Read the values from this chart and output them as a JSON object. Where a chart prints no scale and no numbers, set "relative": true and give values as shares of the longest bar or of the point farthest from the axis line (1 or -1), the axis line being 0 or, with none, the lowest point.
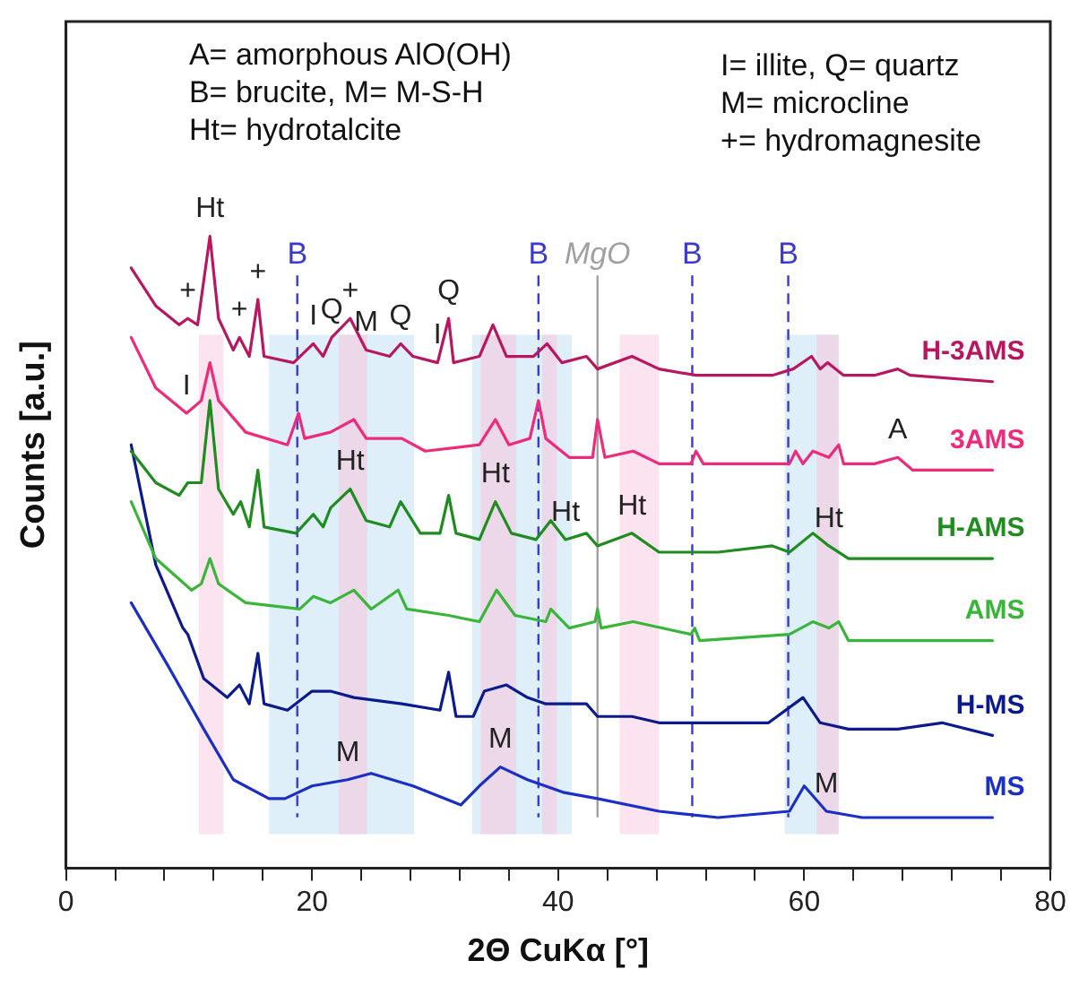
{
  "chart_data": {
    "type": "line",
    "xlabel": "2Θ CuKα [°]",
    "ylabel": "Counts [a.u.]",
    "relative": true,
    "xlim": [
      0,
      80
    ],
    "xticks": [
      0,
      {
        "value": 4,
        "label": null
      },
      {
        "value": 8,
        "label": null
      },
      {
        "value": 12,
        "label": null
      },
      {
        "value": 16,
        "label": null
      },
      20,
      {
        "value": 24,
        "label": null
      },
      {
        "value": 28,
        "label": null
      },
      {
        "value": 32,
        "label": null
      },
      {
        "value": 36,
        "label": null
      },
      40,
      {
        "value": 44,
        "label": null
      },
      {
        "value": 48,
        "label": null
      },
      {
        "value": 52,
        "label": null
      },
      {
        "value": 56,
        "label": null
      },
      60,
      {
        "value": 64,
        "label": null
      },
      {
        "value": 68,
        "label": null
      },
      {
        "value": 72,
        "label": null
      },
      {
        "value": 76,
        "label": null
      },
      80
    ],
    "legend": false,
    "grid": false,
    "marker": "none",
    "line_style": "solid",
    "series": [
      {
        "name": "H-3AMS",
        "color": "#b8175f",
        "x": [
          5.3,
          7.3,
          9.2,
          9.9,
          10.7,
          11.7,
          12.4,
          13.6,
          14.1,
          14.9,
          15.6,
          16.1,
          18.5,
          20.1,
          20.9,
          21.6,
          23.1,
          24.4,
          26.3,
          27.2,
          28.2,
          30.2,
          31.1,
          31.5,
          33.6,
          34.7,
          35.8,
          38.0,
          39.1,
          40.3,
          42.3,
          43.2,
          46.0,
          48.2,
          51.2,
          54.5,
          57.4,
          59.1,
          60.6,
          61.3,
          61.9,
          63.2,
          65.7,
          67.6,
          68.6,
          75.3
        ],
        "values": [
          0.95,
          0.89,
          0.86,
          0.87,
          0.86,
          1.0,
          0.87,
          0.82,
          0.84,
          0.81,
          0.9,
          0.81,
          0.8,
          0.83,
          0.81,
          0.84,
          0.87,
          0.82,
          0.81,
          0.83,
          0.81,
          0.8,
          0.87,
          0.8,
          0.81,
          0.86,
          0.81,
          0.81,
          0.83,
          0.8,
          0.81,
          0.79,
          0.81,
          0.79,
          0.78,
          0.78,
          0.78,
          0.79,
          0.81,
          0.79,
          0.8,
          0.78,
          0.78,
          0.79,
          0.78,
          0.77
        ]
      },
      {
        "name": "3AMS",
        "color": "#ee2a7b",
        "x": [
          5.3,
          7.3,
          9.8,
          11.0,
          11.7,
          12.4,
          14.6,
          18.0,
          18.9,
          19.4,
          21.5,
          23.4,
          24.4,
          27.3,
          29.2,
          33.6,
          34.9,
          36.0,
          37.7,
          38.4,
          39.0,
          40.9,
          42.8,
          43.2,
          43.8,
          46.1,
          48.2,
          50.8,
          51.2,
          51.8,
          58.8,
          59.3,
          59.9,
          60.7,
          62.0,
          62.8,
          63.2,
          65.7,
          67.6,
          68.8,
          75.3
        ],
        "values": [
          0.84,
          0.76,
          0.72,
          0.74,
          0.8,
          0.74,
          0.69,
          0.67,
          0.72,
          0.68,
          0.69,
          0.71,
          0.68,
          0.68,
          0.66,
          0.67,
          0.71,
          0.67,
          0.68,
          0.74,
          0.68,
          0.65,
          0.65,
          0.71,
          0.65,
          0.66,
          0.64,
          0.64,
          0.66,
          0.64,
          0.64,
          0.66,
          0.64,
          0.66,
          0.65,
          0.67,
          0.64,
          0.64,
          0.65,
          0.63,
          0.63
        ]
      },
      {
        "name": "H-AMS",
        "color": "#1e8c1e",
        "x": [
          5.3,
          7.3,
          9.2,
          9.9,
          11.0,
          11.7,
          12.4,
          13.6,
          14.2,
          14.9,
          15.6,
          16.1,
          18.7,
          20.1,
          20.9,
          21.5,
          23.1,
          24.4,
          26.3,
          27.2,
          28.8,
          30.4,
          31.1,
          31.7,
          33.6,
          34.9,
          36.2,
          38.2,
          39.4,
          40.6,
          42.3,
          43.2,
          46.0,
          48.2,
          53.0,
          57.4,
          58.8,
          60.7,
          62.0,
          63.6,
          67.6,
          75.3
        ],
        "values": [
          0.66,
          0.61,
          0.59,
          0.61,
          0.61,
          0.74,
          0.6,
          0.56,
          0.58,
          0.54,
          0.63,
          0.54,
          0.53,
          0.56,
          0.54,
          0.57,
          0.6,
          0.55,
          0.54,
          0.58,
          0.53,
          0.53,
          0.59,
          0.53,
          0.52,
          0.58,
          0.53,
          0.52,
          0.55,
          0.52,
          0.53,
          0.51,
          0.53,
          0.5,
          0.5,
          0.51,
          0.5,
          0.53,
          0.51,
          0.49,
          0.49,
          0.49
        ]
      },
      {
        "name": "AMS",
        "color": "#39b539",
        "x": [
          5.3,
          7.3,
          10.2,
          11.0,
          11.7,
          12.4,
          14.6,
          19.0,
          20.1,
          21.5,
          23.4,
          24.8,
          27.0,
          27.7,
          31.1,
          33.6,
          35.0,
          36.5,
          39.0,
          39.4,
          40.9,
          43.0,
          43.2,
          43.5,
          46.1,
          50.8,
          51.1,
          51.5,
          58.8,
          60.7,
          62.0,
          62.8,
          63.6,
          75.3
        ],
        "values": [
          0.58,
          0.49,
          0.44,
          0.45,
          0.49,
          0.45,
          0.42,
          0.41,
          0.43,
          0.42,
          0.44,
          0.41,
          0.44,
          0.41,
          0.4,
          0.39,
          0.44,
          0.4,
          0.39,
          0.41,
          0.38,
          0.39,
          0.41,
          0.38,
          0.39,
          0.37,
          0.38,
          0.36,
          0.37,
          0.39,
          0.38,
          0.39,
          0.36,
          0.36
        ]
      },
      {
        "name": "H-MS",
        "color": "#0b1a8c",
        "x": [
          5.3,
          7.3,
          9.5,
          9.9,
          11.2,
          13.1,
          14.1,
          14.9,
          15.6,
          16.1,
          18.0,
          20.0,
          21.5,
          23.4,
          27.3,
          30.4,
          31.1,
          31.7,
          33.1,
          34.0,
          35.8,
          37.5,
          39.0,
          41.3,
          42.3,
          43.2,
          46.0,
          48.2,
          53.0,
          57.1,
          59.9,
          61.3,
          63.6,
          67.6,
          71.2,
          75.3
        ],
        "values": [
          0.67,
          0.48,
          0.38,
          0.37,
          0.3,
          0.27,
          0.29,
          0.26,
          0.34,
          0.26,
          0.25,
          0.28,
          0.28,
          0.27,
          0.26,
          0.25,
          0.31,
          0.24,
          0.24,
          0.28,
          0.29,
          0.27,
          0.26,
          0.26,
          0.26,
          0.24,
          0.24,
          0.23,
          0.23,
          0.23,
          0.27,
          0.23,
          0.22,
          0.22,
          0.23,
          0.21
        ]
      },
      {
        "name": "MS",
        "color": "#1c2fc4",
        "x": [
          5.3,
          8.3,
          11.2,
          13.6,
          16.5,
          17.8,
          20.0,
          22.9,
          24.8,
          28.2,
          32.1,
          33.6,
          35.3,
          37.5,
          40.4,
          43.2,
          48.2,
          53.0,
          58.8,
          60.0,
          61.8,
          64.7,
          72.0,
          75.3
        ],
        "values": [
          0.42,
          0.32,
          0.22,
          0.14,
          0.11,
          0.11,
          0.13,
          0.14,
          0.15,
          0.13,
          0.1,
          0.13,
          0.16,
          0.14,
          0.12,
          0.11,
          0.09,
          0.08,
          0.09,
          0.13,
          0.09,
          0.08,
          0.08,
          0.08
        ]
      }
    ],
    "bands": [
      {
        "axis": "x",
        "from": 16.5,
        "to": 28.3,
        "color": "#d4eaf8"
      },
      {
        "axis": "x",
        "from": 33.0,
        "to": 41.1,
        "color": "#d4eaf8"
      },
      {
        "axis": "x",
        "from": 58.4,
        "to": 62.8,
        "color": "#d4eaf8"
      },
      {
        "axis": "x",
        "from": 10.8,
        "to": 12.8,
        "color": "#f9d9ea"
      },
      {
        "axis": "x",
        "from": 22.2,
        "to": 24.5,
        "color": "#f0d0e2"
      },
      {
        "axis": "x",
        "from": 33.7,
        "to": 36.6,
        "color": "#f0d0e2"
      },
      {
        "axis": "x",
        "from": 38.7,
        "to": 39.9,
        "color": "#f0d0e2"
      },
      {
        "axis": "x",
        "from": 45.0,
        "to": 48.2,
        "color": "#f9d9ea"
      },
      {
        "axis": "x",
        "from": 61.0,
        "to": 62.8,
        "color": "#f0d0e2"
      }
    ],
    "ref_lines": [
      {
        "axis": "x",
        "value": 18.8,
        "label": "B",
        "color": "#3a3ad0",
        "line_style": "dashed"
      },
      {
        "axis": "x",
        "value": 38.4,
        "label": "B",
        "color": "#3a3ad0",
        "line_style": "dashed"
      },
      {
        "axis": "x",
        "value": 50.9,
        "label": "B",
        "color": "#3a3ad0",
        "line_style": "dashed"
      },
      {
        "axis": "x",
        "value": 58.7,
        "label": "B",
        "color": "#3a3ad0",
        "line_style": "dashed"
      },
      {
        "axis": "x",
        "value": 43.2,
        "label": "MgO",
        "color": "#a0a0a0",
        "line_style": "solid"
      }
    ],
    "annotations": [
      "A= amorphous AlO(OH)",
      "B= brucite, M= M-S-H",
      "Ht= hydrotalcite",
      "I= illite, Q= quartz",
      "M= microcline",
      "+= hydromagnesite",
      {
        "text": "Ht",
        "x": 11.7,
        "y": 1.0
      },
      {
        "text": "+",
        "x": 9.9,
        "y": 0.87
      },
      {
        "text": "+",
        "x": 14.1,
        "y": 0.84
      },
      {
        "text": "+",
        "x": 15.6,
        "y": 0.9
      },
      {
        "text": "I",
        "x": 20.1,
        "y": 0.83
      },
      {
        "text": "Q",
        "x": 21.6,
        "y": 0.84
      },
      {
        "text": "M",
        "x": 24.4,
        "y": 0.82
      },
      {
        "text": "Q",
        "x": 27.2,
        "y": 0.83
      },
      {
        "text": "I",
        "x": 30.2,
        "y": 0.8
      },
      {
        "text": "Q",
        "x": 31.1,
        "y": 0.87
      },
      {
        "text": "+",
        "x": 23.1,
        "y": 0.87
      },
      {
        "text": "I",
        "x": 9.8,
        "y": 0.72
      },
      {
        "text": "Ht",
        "x": 23.1,
        "y": 0.6
      },
      {
        "text": "Ht",
        "x": 34.9,
        "y": 0.58
      },
      {
        "text": "Ht",
        "x": 40.6,
        "y": 0.52
      },
      {
        "text": "Ht",
        "x": 46.0,
        "y": 0.53
      },
      {
        "text": "Ht",
        "x": 62.0,
        "y": 0.51
      },
      {
        "text": "A",
        "x": 67.6,
        "y": 0.65
      },
      {
        "text": "M",
        "x": 22.9,
        "y": 0.14
      },
      {
        "text": "M",
        "x": 35.3,
        "y": 0.16
      },
      {
        "text": "M",
        "x": 61.8,
        "y": 0.09
      }
    ]
  }
}
